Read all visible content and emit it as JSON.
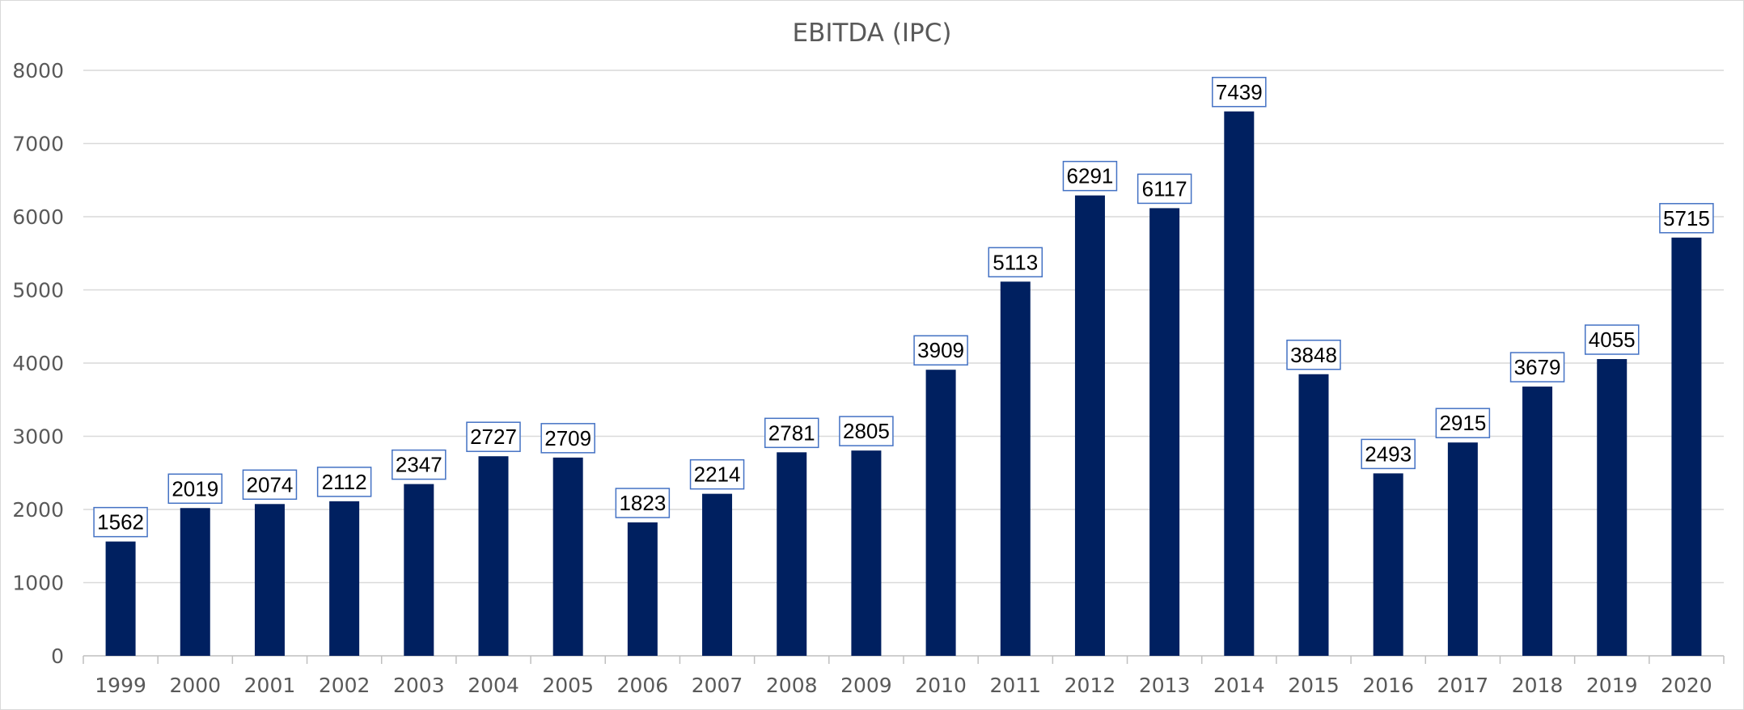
{
  "chart_data": {
    "type": "bar",
    "title": "EBITDA (IPC)",
    "xlabel": "",
    "ylabel": "",
    "categories": [
      "1999",
      "2000",
      "2001",
      "2002",
      "2003",
      "2004",
      "2005",
      "2006",
      "2007",
      "2008",
      "2009",
      "2010",
      "2011",
      "2012",
      "2013",
      "2014",
      "2015",
      "2016",
      "2017",
      "2018",
      "2019",
      "2020"
    ],
    "values": [
      1562,
      2019,
      2074,
      2112,
      2347,
      2727,
      2709,
      1823,
      2214,
      2781,
      2805,
      3909,
      5113,
      6291,
      6117,
      7439,
      3848,
      2493,
      2915,
      3679,
      4055,
      5715
    ],
    "ylim": [
      0,
      8000
    ],
    "yticks": [
      0,
      1000,
      2000,
      3000,
      4000,
      5000,
      6000,
      7000,
      8000
    ],
    "grid": true,
    "legend": "none",
    "data_labels": true,
    "colors": {
      "bar": "#002060",
      "label_border": "#4472c4",
      "grid": "#d9d9d9",
      "text": "#595959"
    }
  }
}
